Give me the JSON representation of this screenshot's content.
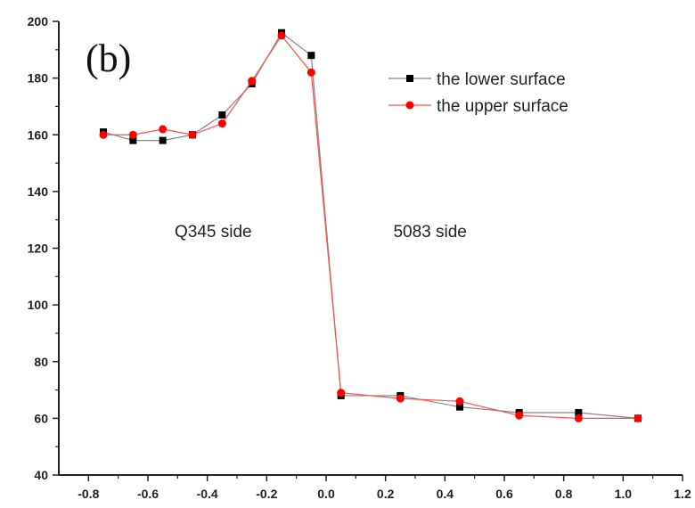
{
  "chart_data": {
    "type": "line",
    "panel_label": "(b)",
    "xlim": [
      -0.9,
      1.2
    ],
    "ylim": [
      40,
      200
    ],
    "x_ticks": [
      "-0.8",
      "-0.6",
      "-0.4",
      "-0.2",
      "0.0",
      "0.2",
      "0.4",
      "0.6",
      "0.8",
      "1.0",
      "1.2"
    ],
    "x_tick_values": [
      -0.8,
      -0.6,
      -0.4,
      -0.2,
      0.0,
      0.2,
      0.4,
      0.6,
      0.8,
      1.0,
      1.2
    ],
    "y_ticks": [
      "40",
      "60",
      "80",
      "100",
      "120",
      "140",
      "160",
      "180",
      "200"
    ],
    "y_tick_values": [
      40,
      60,
      80,
      100,
      120,
      140,
      160,
      180,
      200
    ],
    "legend_position": "top-right",
    "series": [
      {
        "name": "the lower surface",
        "color": "#000000",
        "line_color": "#888888",
        "marker": "square",
        "x": [
          -0.75,
          -0.65,
          -0.55,
          -0.45,
          -0.35,
          -0.25,
          -0.15,
          -0.05,
          0.05,
          0.25,
          0.45,
          0.65,
          0.85,
          1.05
        ],
        "y": [
          161,
          158,
          158,
          160,
          167,
          178,
          196,
          188,
          68,
          68,
          64,
          62,
          62,
          60
        ]
      },
      {
        "name": "the upper surface",
        "color": "#ff0000",
        "line_color": "#ff4d4d",
        "marker": "circle",
        "x": [
          -0.75,
          -0.65,
          -0.55,
          -0.45,
          -0.35,
          -0.25,
          -0.15,
          -0.05,
          0.05,
          0.25,
          0.45,
          0.65,
          0.85,
          1.05
        ],
        "y": [
          160,
          160,
          162,
          160,
          164,
          179,
          195,
          182,
          69,
          67,
          66,
          61,
          60,
          60
        ]
      }
    ],
    "annotations": [
      {
        "text": "Q345 side",
        "x": -0.38,
        "y": 124
      },
      {
        "text": "5083 side",
        "x": 0.35,
        "y": 124
      }
    ]
  }
}
